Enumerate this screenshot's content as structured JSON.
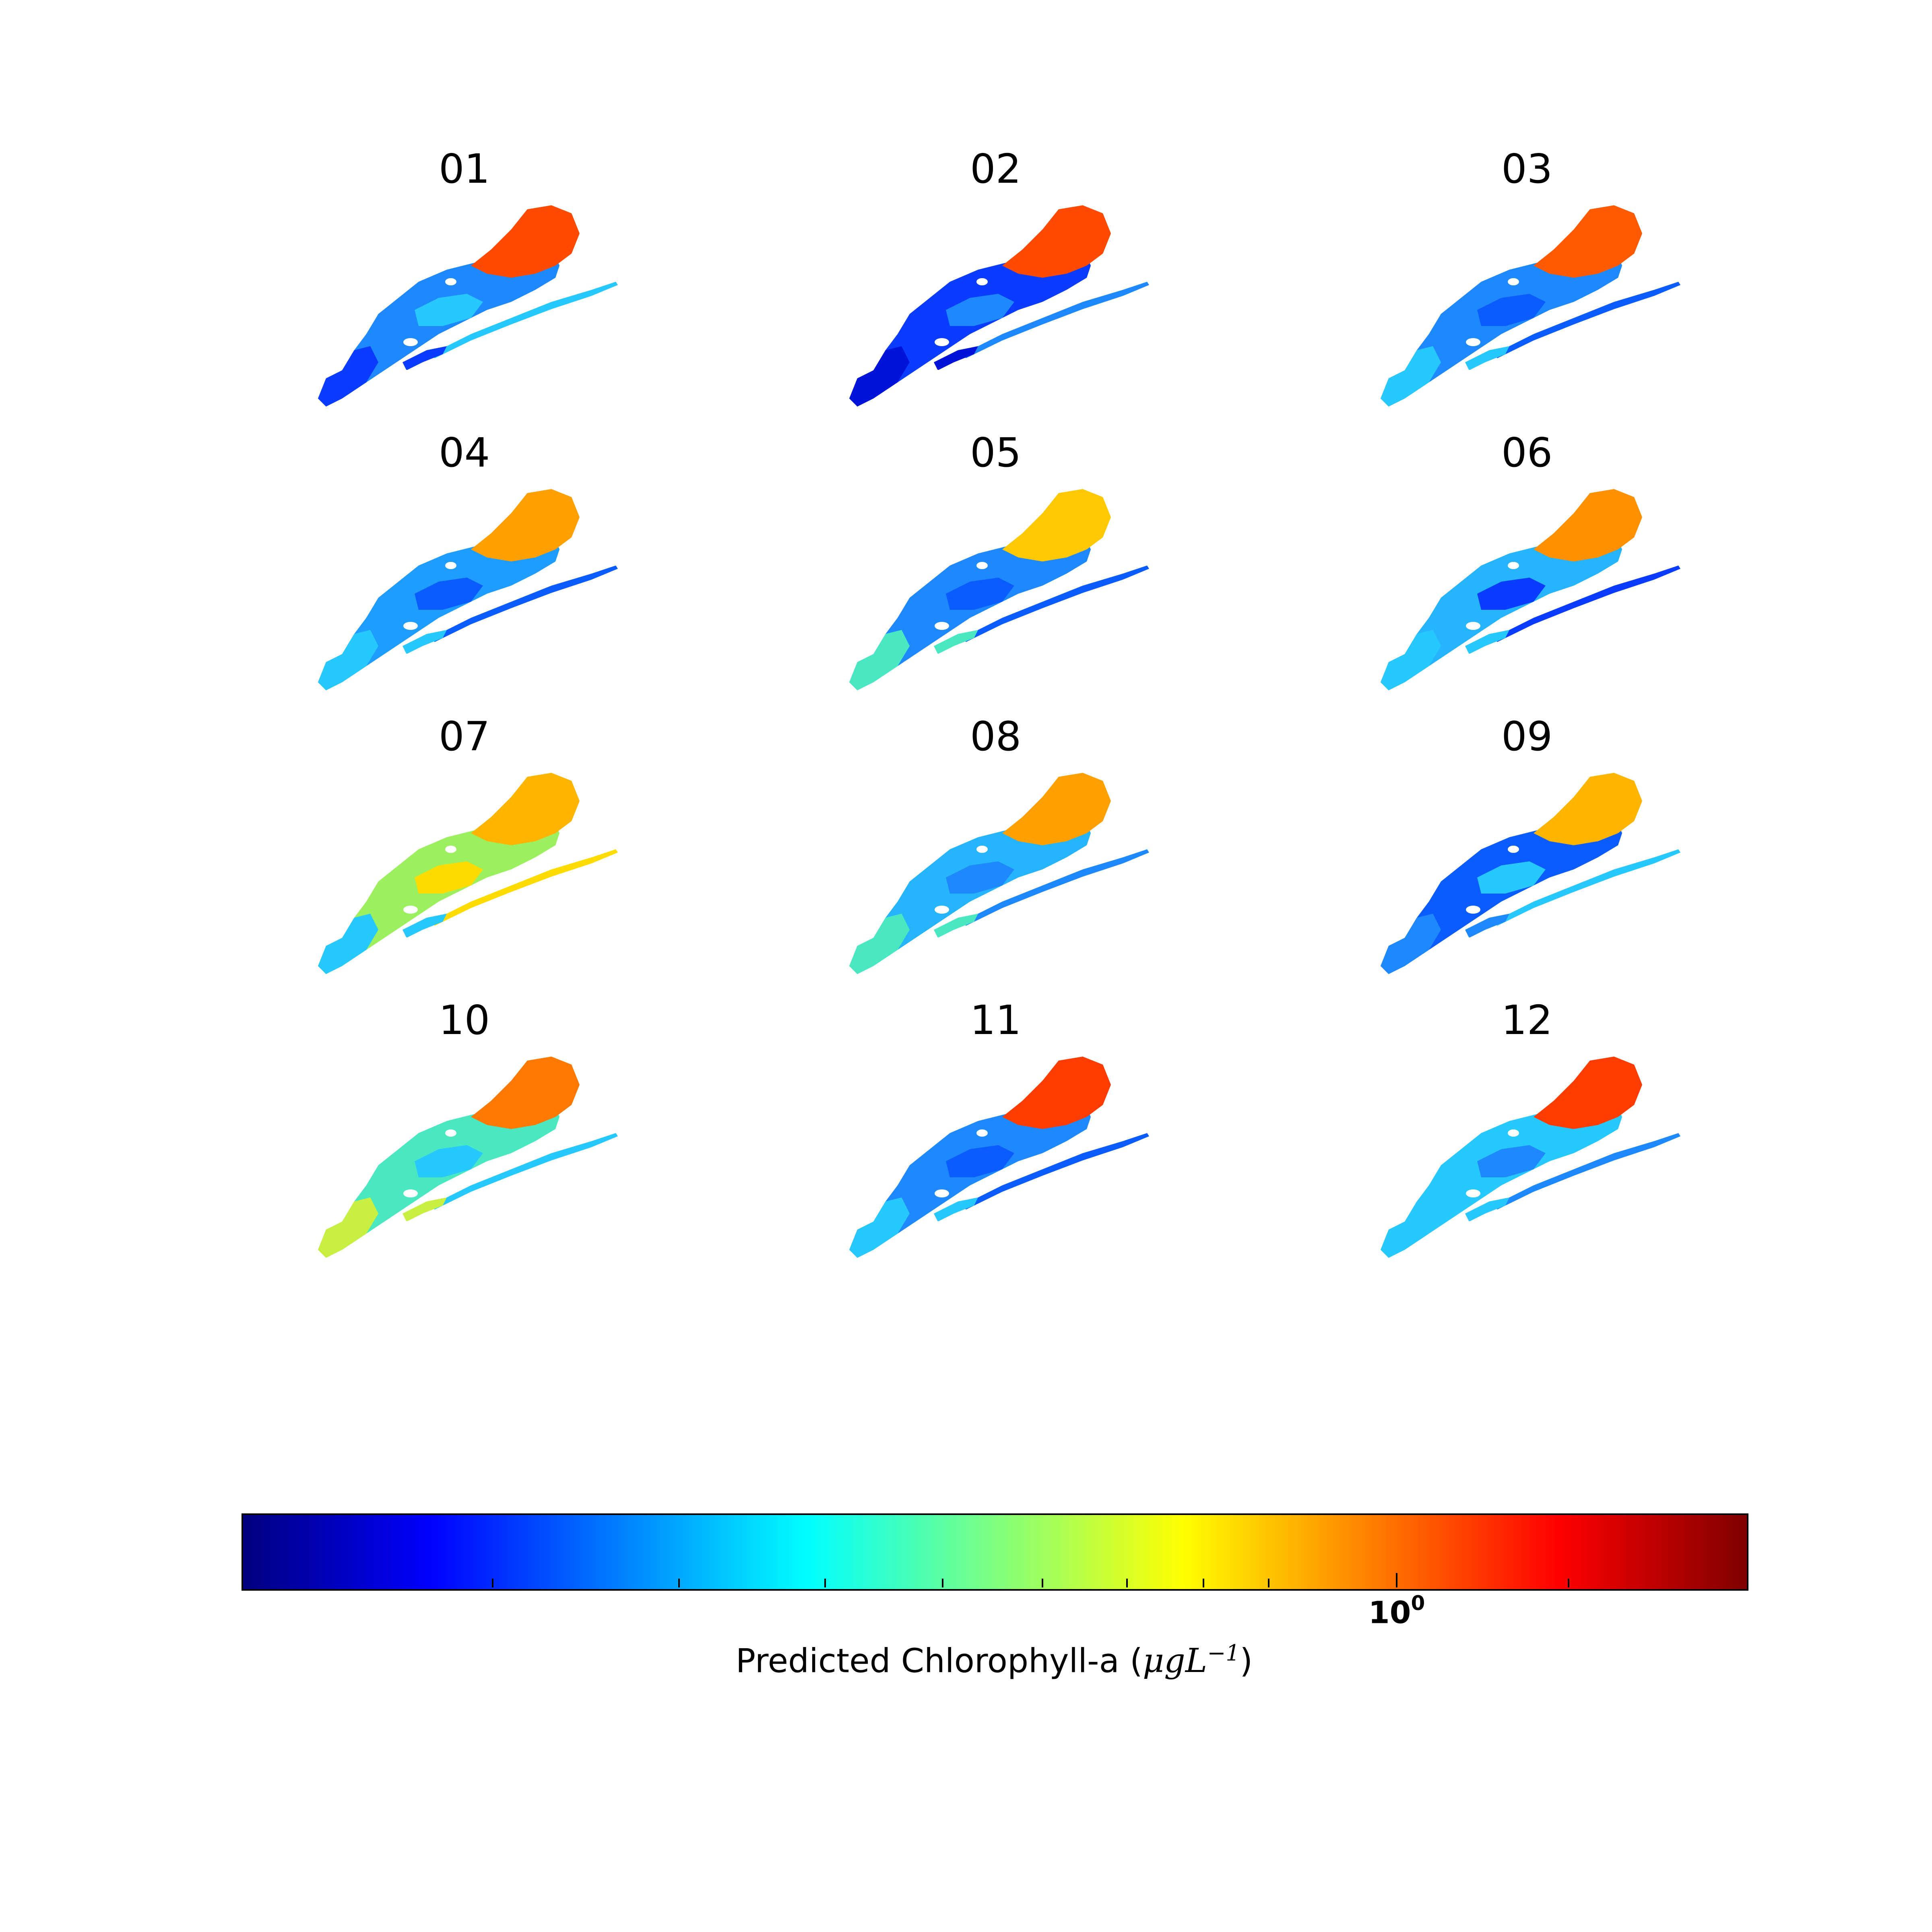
{
  "panels": [
    {
      "title": "01",
      "north": "#ff4a00",
      "body": "#1e88ff",
      "west": "#0a3cff",
      "accent": "#26c8ff"
    },
    {
      "title": "02",
      "north": "#ff4a00",
      "body": "#0a3cff",
      "west": "#0014d8",
      "accent": "#1e88ff"
    },
    {
      "title": "03",
      "north": "#ff5a00",
      "body": "#1e88ff",
      "west": "#26c8ff",
      "accent": "#0a5cff"
    },
    {
      "title": "04",
      "north": "#ffa000",
      "body": "#1e9cff",
      "west": "#26c8ff",
      "accent": "#0a5cff"
    },
    {
      "title": "05",
      "north": "#ffc800",
      "body": "#1e88ff",
      "west": "#4ae8c0",
      "accent": "#0a5cff"
    },
    {
      "title": "06",
      "north": "#ff9000",
      "body": "#26b4ff",
      "west": "#26c8ff",
      "accent": "#0a3cff"
    },
    {
      "title": "07",
      "north": "#ffb400",
      "body": "#9cf060",
      "west": "#26c8ff",
      "accent": "#ffdc00"
    },
    {
      "title": "08",
      "north": "#ffa000",
      "body": "#26b4ff",
      "west": "#4ae8c0",
      "accent": "#1e88ff"
    },
    {
      "title": "09",
      "north": "#ffb400",
      "body": "#0a5cff",
      "west": "#1e88ff",
      "accent": "#26c8ff"
    },
    {
      "title": "10",
      "north": "#ff7800",
      "body": "#4ae8c0",
      "west": "#c8f040",
      "accent": "#26c8ff"
    },
    {
      "title": "11",
      "north": "#ff3c00",
      "body": "#1e88ff",
      "west": "#26c8ff",
      "accent": "#0a5cff"
    },
    {
      "title": "12",
      "north": "#ff3c00",
      "body": "#26c8ff",
      "west": "#26c8ff",
      "accent": "#1e88ff"
    }
  ],
  "colorbar": {
    "tick_base": "10",
    "tick_exponent": "0",
    "label_prefix": "Predicted Chlorophyll-a (",
    "label_math": "μgL",
    "label_exp": "−1",
    "label_suffix": ")",
    "colors": [
      "#00007f",
      "#0000ff",
      "#007fff",
      "#00ffff",
      "#7fff7f",
      "#ffff00",
      "#ff7f00",
      "#ff0000",
      "#7f0000"
    ]
  }
}
